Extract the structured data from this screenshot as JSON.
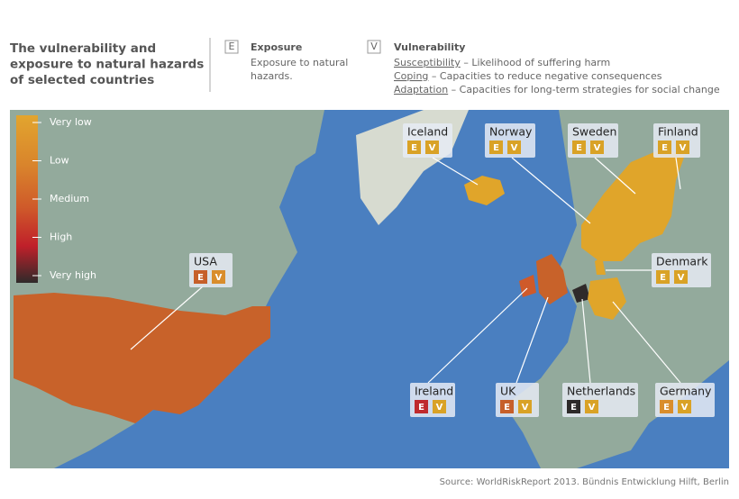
{
  "header": {
    "title": [
      "The vulnerability and",
      "exposure to natural hazards",
      "of selected countries"
    ]
  },
  "key": {
    "exposure": {
      "letter": "E",
      "title": "Exposure",
      "text": [
        "Exposure to natural",
        "hazards."
      ]
    },
    "vulnerability": {
      "letter": "V",
      "title": "Vulnerability",
      "items": [
        {
          "term": "Susceptibility",
          "text": "– Likelihood of suffering harm"
        },
        {
          "term": "Coping",
          "text": "– Capacities to reduce negative consequences"
        },
        {
          "term": "Adaptation",
          "text": "– Capacities for long-term strategies for social change"
        }
      ]
    }
  },
  "scale": {
    "levels": [
      "Very low",
      "Low",
      "Medium",
      "High",
      "Very high"
    ],
    "colors": [
      "#e2a52e",
      "#d9842c",
      "#cf5a2a",
      "#c0202a",
      "#2f2a2a"
    ]
  },
  "countries": [
    {
      "name": "Iceland",
      "e_color": "#d9a226",
      "v_color": "#d9a226"
    },
    {
      "name": "Norway",
      "e_color": "#d9a226",
      "v_color": "#d9a226"
    },
    {
      "name": "Sweden",
      "e_color": "#d9a226",
      "v_color": "#d9a226"
    },
    {
      "name": "Finland",
      "e_color": "#d9a226",
      "v_color": "#d9a226"
    },
    {
      "name": "Denmark",
      "e_color": "#d9a226",
      "v_color": "#d9a226"
    },
    {
      "name": "USA",
      "e_color": "#c65f2a",
      "v_color": "#d98d2c"
    },
    {
      "name": "Ireland",
      "e_color": "#bf2a2e",
      "v_color": "#d9a226"
    },
    {
      "name": "UK",
      "e_color": "#c65f2a",
      "v_color": "#d9a226"
    },
    {
      "name": "Netherlands",
      "e_color": "#2d2a2a",
      "v_color": "#d9a226"
    },
    {
      "name": "Germany",
      "e_color": "#d98d2c",
      "v_color": "#d9a226"
    }
  ],
  "source": "Source: WorldRiskReport 2013. Bündnis Entwicklung Hilft, Berlin"
}
